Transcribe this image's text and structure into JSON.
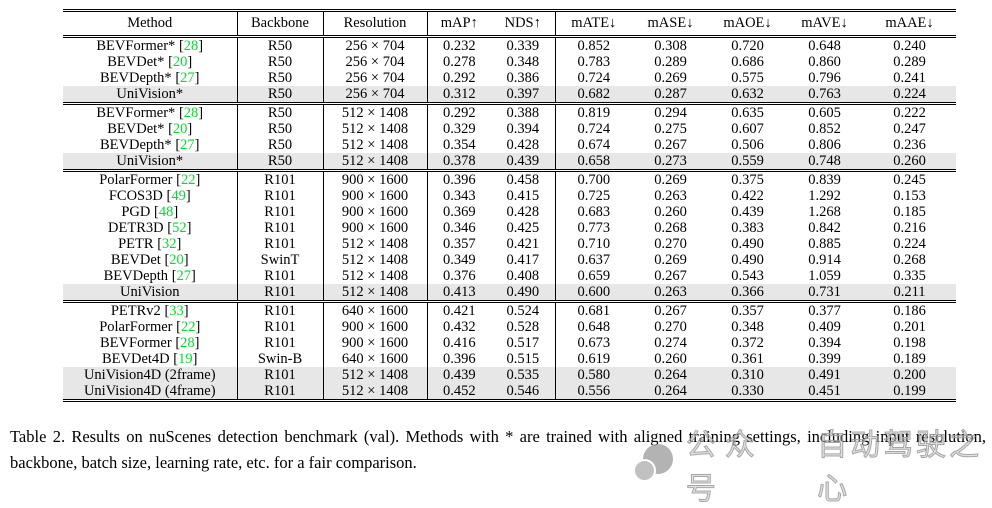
{
  "table": {
    "headers": [
      "Method",
      "Backbone",
      "Resolution",
      "mAP↑",
      "NDS↑",
      "mATE↓",
      "mASE↓",
      "mAOE↓",
      "mAVE↓",
      "mAAE↓"
    ],
    "groups": [
      {
        "rows": [
          {
            "method": "BEVFormer*",
            "cite": "28",
            "backbone": "R50",
            "resolution": "256 × 704",
            "values": [
              "0.232",
              "0.339",
              "0.852",
              "0.308",
              "0.720",
              "0.648",
              "0.240"
            ],
            "bold": [
              5
            ],
            "highlight": false
          },
          {
            "method": "BEVDet*",
            "cite": "20",
            "backbone": "R50",
            "resolution": "256 × 704",
            "values": [
              "0.278",
              "0.348",
              "0.783",
              "0.289",
              "0.686",
              "0.860",
              "0.289"
            ],
            "bold": [],
            "highlight": false
          },
          {
            "method": "BEVDepth*",
            "cite": "27",
            "backbone": "R50",
            "resolution": "256 × 704",
            "values": [
              "0.292",
              "0.386",
              "0.724",
              "0.269",
              "0.575",
              "0.796",
              "0.241"
            ],
            "bold": [
              3,
              4
            ],
            "highlight": false
          },
          {
            "method": "UniVision*",
            "cite": "",
            "backbone": "R50",
            "resolution": "256 × 704",
            "values": [
              "0.312",
              "0.397",
              "0.682",
              "0.287",
              "0.632",
              "0.763",
              "0.224"
            ],
            "bold": [
              0,
              1,
              2,
              6
            ],
            "highlight": true
          }
        ]
      },
      {
        "rows": [
          {
            "method": "BEVFormer*",
            "cite": "28",
            "backbone": "R50",
            "resolution": "512 × 1408",
            "values": [
              "0.292",
              "0.388",
              "0.819",
              "0.294",
              "0.635",
              "0.605",
              "0.222"
            ],
            "bold": [
              5,
              6
            ],
            "highlight": false
          },
          {
            "method": "BEVDet*",
            "cite": "20",
            "backbone": "R50",
            "resolution": "512 × 1408",
            "values": [
              "0.329",
              "0.394",
              "0.724",
              "0.275",
              "0.607",
              "0.852",
              "0.247"
            ],
            "bold": [],
            "highlight": false
          },
          {
            "method": "BEVDepth*",
            "cite": "27",
            "backbone": "R50",
            "resolution": "512 × 1408",
            "values": [
              "0.354",
              "0.428",
              "0.674",
              "0.267",
              "0.506",
              "0.806",
              "0.236"
            ],
            "bold": [
              3,
              4
            ],
            "highlight": false
          },
          {
            "method": "UniVision*",
            "cite": "",
            "backbone": "R50",
            "resolution": "512 × 1408",
            "values": [
              "0.378",
              "0.439",
              "0.658",
              "0.273",
              "0.559",
              "0.748",
              "0.260"
            ],
            "bold": [
              0,
              1,
              2
            ],
            "highlight": true
          }
        ]
      },
      {
        "rows": [
          {
            "method": "PolarFormer",
            "cite": "22",
            "backbone": "R101",
            "resolution": "900 × 1600",
            "values": [
              "0.396",
              "0.458",
              "0.700",
              "0.269",
              "0.375",
              "0.839",
              "0.245"
            ],
            "bold": [],
            "highlight": false
          },
          {
            "method": "FCOS3D",
            "cite": "49",
            "backbone": "R101",
            "resolution": "900 × 1600",
            "values": [
              "0.343",
              "0.415",
              "0.725",
              "0.263",
              "0.422",
              "1.292",
              "0.153"
            ],
            "bold": [
              6
            ],
            "highlight": false
          },
          {
            "method": "PGD",
            "cite": "48",
            "backbone": "R101",
            "resolution": "900 × 1600",
            "values": [
              "0.369",
              "0.428",
              "0.683",
              "0.260",
              "0.439",
              "1.268",
              "0.185"
            ],
            "bold": [
              3
            ],
            "highlight": false
          },
          {
            "method": "DETR3D",
            "cite": "52",
            "backbone": "R101",
            "resolution": "900 × 1600",
            "values": [
              "0.346",
              "0.425",
              "0.773",
              "0.268",
              "0.383",
              "0.842",
              "0.216"
            ],
            "bold": [],
            "highlight": false
          },
          {
            "method": "PETR",
            "cite": "32",
            "backbone": "R101",
            "resolution": "512 × 1408",
            "values": [
              "0.357",
              "0.421",
              "0.710",
              "0.270",
              "0.490",
              "0.885",
              "0.224"
            ],
            "bold": [],
            "highlight": false
          },
          {
            "method": "BEVDet",
            "cite": "20",
            "backbone": "SwinT",
            "resolution": "512 × 1408",
            "values": [
              "0.349",
              "0.417",
              "0.637",
              "0.269",
              "0.490",
              "0.914",
              "0.268"
            ],
            "bold": [],
            "highlight": false
          },
          {
            "method": "BEVDepth",
            "cite": "27",
            "backbone": "R101",
            "resolution": "512 × 1408",
            "values": [
              "0.376",
              "0.408",
              "0.659",
              "0.267",
              "0.543",
              "1.059",
              "0.335"
            ],
            "bold": [],
            "highlight": false
          },
          {
            "method": "UniVision",
            "cite": "",
            "backbone": "R101",
            "resolution": "512 × 1408",
            "values": [
              "0.413",
              "0.490",
              "0.600",
              "0.263",
              "0.366",
              "0.731",
              "0.211"
            ],
            "bold": [
              0,
              1,
              2,
              4,
              5
            ],
            "highlight": true
          }
        ]
      },
      {
        "rows": [
          {
            "method": "PETRv2",
            "cite": "33",
            "backbone": "R101",
            "resolution": "640 × 1600",
            "values": [
              "0.421",
              "0.524",
              "0.681",
              "0.267",
              "0.357",
              "0.377",
              "0.186"
            ],
            "bold": [
              5,
              6
            ],
            "highlight": false
          },
          {
            "method": "PolarFormer",
            "cite": "22",
            "backbone": "R101",
            "resolution": "900 × 1600",
            "values": [
              "0.432",
              "0.528",
              "0.648",
              "0.270",
              "0.348",
              "0.409",
              "0.201"
            ],
            "bold": [],
            "highlight": false
          },
          {
            "method": "BEVFormer",
            "cite": "28",
            "backbone": "R101",
            "resolution": "900 × 1600",
            "values": [
              "0.416",
              "0.517",
              "0.673",
              "0.274",
              "0.372",
              "0.394",
              "0.198"
            ],
            "bold": [],
            "highlight": false
          },
          {
            "method": "BEVDet4D",
            "cite": "19",
            "backbone": "Swin-B",
            "resolution": "640 × 1600",
            "values": [
              "0.396",
              "0.515",
              "0.619",
              "0.260",
              "0.361",
              "0.399",
              "0.189"
            ],
            "bold": [
              3
            ],
            "highlight": false
          },
          {
            "method": "UniVision4D (2frame)",
            "cite": "",
            "backbone": "R101",
            "resolution": "512 × 1408",
            "values": [
              "0.439",
              "0.535",
              "0.580",
              "0.264",
              "0.310",
              "0.491",
              "0.200"
            ],
            "bold": [
              4
            ],
            "highlight": true
          },
          {
            "method": "UniVision4D (4frame)",
            "cite": "",
            "backbone": "R101",
            "resolution": "512 × 1408",
            "values": [
              "0.452",
              "0.546",
              "0.556",
              "0.264",
              "0.330",
              "0.451",
              "0.199"
            ],
            "bold": [
              0,
              1,
              2
            ],
            "highlight": true
          }
        ]
      }
    ]
  },
  "caption": {
    "text": "Table 2.  Results on nuScenes detection benchmark (val).  Methods with * are trained with aligned training settings, including input resolution, backbone, batch size, learning rate, etc. for a fair comparison."
  },
  "watermark": {
    "label": "公众号",
    "name": "自动驾驶之心"
  },
  "colors": {
    "citation_green": "#00dd30",
    "row_highlight": "#e7e7e7"
  }
}
